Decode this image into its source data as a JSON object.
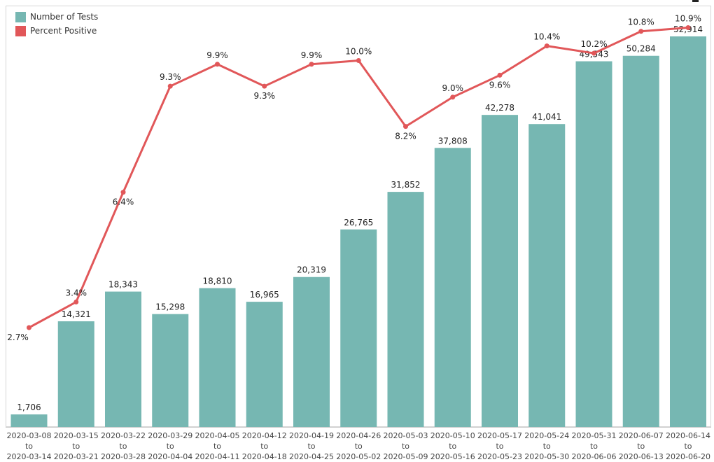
{
  "chart_data": {
    "type": "bar",
    "categories": [
      {
        "start": "2020-03-08",
        "to": "to",
        "end": "2020-03-14"
      },
      {
        "start": "2020-03-15",
        "to": "to",
        "end": "2020-03-21"
      },
      {
        "start": "2020-03-22",
        "to": "to",
        "end": "2020-03-28"
      },
      {
        "start": "2020-03-29",
        "to": "to",
        "end": "2020-04-04"
      },
      {
        "start": "2020-04-05",
        "to": "to",
        "end": "2020-04-11"
      },
      {
        "start": "2020-04-12",
        "to": "to",
        "end": "2020-04-18"
      },
      {
        "start": "2020-04-19",
        "to": "to",
        "end": "2020-04-25"
      },
      {
        "start": "2020-04-26",
        "to": "to",
        "end": "2020-05-02"
      },
      {
        "start": "2020-05-03",
        "to": "to",
        "end": "2020-05-09"
      },
      {
        "start": "2020-05-10",
        "to": "to",
        "end": "2020-05-16"
      },
      {
        "start": "2020-05-17",
        "to": "to",
        "end": "2020-05-23"
      },
      {
        "start": "2020-05-24",
        "to": "to",
        "end": "2020-05-30"
      },
      {
        "start": "2020-05-31",
        "to": "to",
        "end": "2020-06-06"
      },
      {
        "start": "2020-06-07",
        "to": "to",
        "end": "2020-06-13"
      },
      {
        "start": "2020-06-14",
        "to": "to",
        "end": "2020-06-20"
      }
    ],
    "series": [
      {
        "name": "Number of Tests",
        "kind": "bar",
        "color": "#76b7b2",
        "values": [
          1706,
          14321,
          18343,
          15298,
          18810,
          16965,
          20319,
          26765,
          31852,
          37808,
          42278,
          41041,
          49543,
          50284,
          52914
        ],
        "labels": [
          "1,706",
          "14,321",
          "18,343",
          "15,298",
          "18,810",
          "16,965",
          "20,319",
          "26,765",
          "31,852",
          "37,808",
          "42,278",
          "41,041",
          "49,543",
          "50,284",
          "52,914"
        ]
      },
      {
        "name": "Percent Positive",
        "kind": "line",
        "color": "#e15759",
        "values": [
          2.7,
          3.4,
          6.4,
          9.3,
          9.9,
          9.3,
          9.9,
          10.0,
          8.2,
          9.0,
          9.6,
          10.4,
          10.2,
          10.8,
          10.9
        ],
        "labels": [
          "2.7%",
          "3.4%",
          "6.4%",
          "9.3%",
          "9.9%",
          "9.3%",
          "9.9%",
          "10.0%",
          "8.2%",
          "9.0%",
          "9.6%",
          "10.4%",
          "10.2%",
          "10.8%",
          "10.9%"
        ],
        "label_positions": [
          "left",
          "above",
          "below",
          "above",
          "above",
          "below",
          "above",
          "above",
          "below",
          "above",
          "below",
          "above",
          "above",
          "above",
          "above"
        ]
      }
    ],
    "y_left_range": [
      0,
      56000
    ],
    "y_right_range": [
      0,
      11.5
    ],
    "grid": false,
    "title": "",
    "xlabel": "",
    "ylabel": "",
    "legend_position": "top-left"
  }
}
